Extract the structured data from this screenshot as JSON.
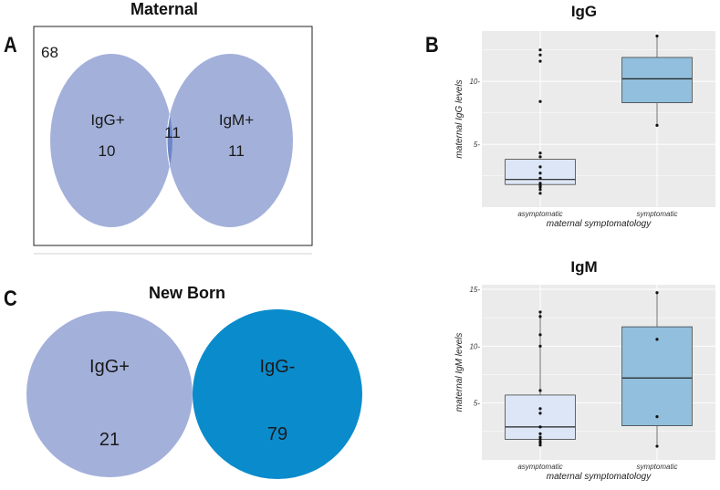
{
  "panels": {
    "a": {
      "letter": "A"
    },
    "b": {
      "letter": "B"
    },
    "c": {
      "letter": "C"
    }
  },
  "maternal": {
    "title": "Maternal",
    "outside_count": "68",
    "igg_label": "IgG+",
    "igg_count": "10",
    "overlap_count": "11",
    "igm_label": "IgM+",
    "igm_count": "11"
  },
  "newborn": {
    "title": "New Born",
    "pos_label": "IgG+",
    "pos_count": "21",
    "neg_label": "IgG-",
    "neg_count": "79"
  },
  "colors": {
    "venn_fill": "#a3b0da",
    "venn_overlap": "#6e86c6",
    "newborn_neg": "#0a8bcc",
    "box_asym": "#dde6f6",
    "box_sym": "#91bfdd",
    "plot_bg": "#ebebeb",
    "grid": "#ffffff"
  },
  "chart_data": [
    {
      "type": "box",
      "title": "IgG",
      "xlabel": "maternal symptomatology",
      "ylabel": "maternal IgG levels",
      "categories": [
        "asymptomatic",
        "symptomatic"
      ],
      "ylim": [
        0,
        14
      ],
      "yticks": [
        5,
        10
      ],
      "ytick_labels": [
        "5-",
        "10-"
      ],
      "boxes": [
        {
          "category": "asymptomatic",
          "q1": 1.8,
          "median": 2.2,
          "q3": 3.8,
          "whisker_low": 1.8,
          "whisker_high": 3.8
        },
        {
          "category": "symptomatic",
          "q1": 8.3,
          "median": 10.2,
          "q3": 11.9,
          "whisker_low": 6.5,
          "whisker_high": 13.6
        }
      ],
      "points": [
        {
          "category": "asymptomatic",
          "values": [
            1.1,
            1.4,
            1.6,
            1.7,
            1.8,
            1.9,
            2.3,
            2.7,
            3.2,
            4.0,
            4.3,
            8.4,
            11.6,
            12.1,
            12.5
          ]
        },
        {
          "category": "symptomatic",
          "values": [
            6.5,
            13.6
          ]
        }
      ]
    },
    {
      "type": "box",
      "title": "IgM",
      "xlabel": "maternal symptomatology",
      "ylabel": "maternal IgM levels",
      "categories": [
        "asymptomatic",
        "symptomatic"
      ],
      "ylim": [
        0,
        15.4
      ],
      "yticks": [
        5,
        10,
        15
      ],
      "ytick_labels": [
        "5-",
        "10-",
        "15-"
      ],
      "boxes": [
        {
          "category": "asymptomatic",
          "q1": 1.8,
          "median": 2.9,
          "q3": 5.7,
          "whisker_low": 1.3,
          "whisker_high": 13.0
        },
        {
          "category": "symptomatic",
          "q1": 3.0,
          "median": 7.2,
          "q3": 11.7,
          "whisker_low": 1.2,
          "whisker_high": 14.7
        }
      ],
      "points": [
        {
          "category": "asymptomatic",
          "values": [
            1.3,
            1.5,
            1.6,
            1.8,
            2.0,
            2.3,
            2.9,
            4.1,
            4.5,
            6.1,
            10.0,
            11.0,
            12.6,
            13.0
          ]
        },
        {
          "category": "symptomatic",
          "values": [
            1.2,
            3.8,
            10.6,
            14.7
          ]
        }
      ]
    }
  ]
}
